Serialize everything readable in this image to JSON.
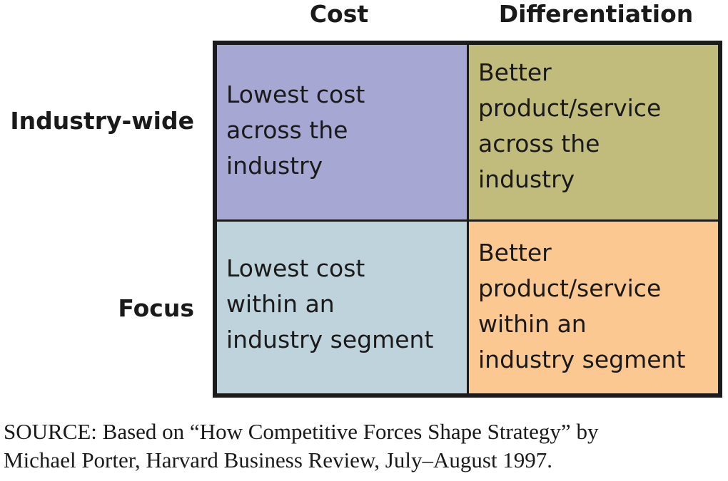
{
  "columns": {
    "cost": "Cost",
    "differentiation": "Differentiation"
  },
  "rows": {
    "industry_wide": "Industry-wide",
    "focus": "Focus"
  },
  "cells": {
    "cost_industry_wide": "Lowest cost\nacross the\nindustry",
    "differentiation_industry_wide": "Better\nproduct/service\nacross the\nindustry",
    "cost_focus": "Lowest cost\nwithin an\nindustry segment",
    "differentiation_focus": "Better\nproduct/service\nwithin an\nindustry segment"
  },
  "colors": {
    "cost_industry_wide": "#a7a7d4",
    "differentiation_industry_wide": "#c1bb7c",
    "cost_focus": "#bfd3dd",
    "differentiation_focus": "#fbc892",
    "border": "#1b1b1b"
  },
  "source": "SOURCE: Based on “How Competitive Forces Shape Strategy” by\nMichael Porter, Harvard Business Review, July–August 1997."
}
